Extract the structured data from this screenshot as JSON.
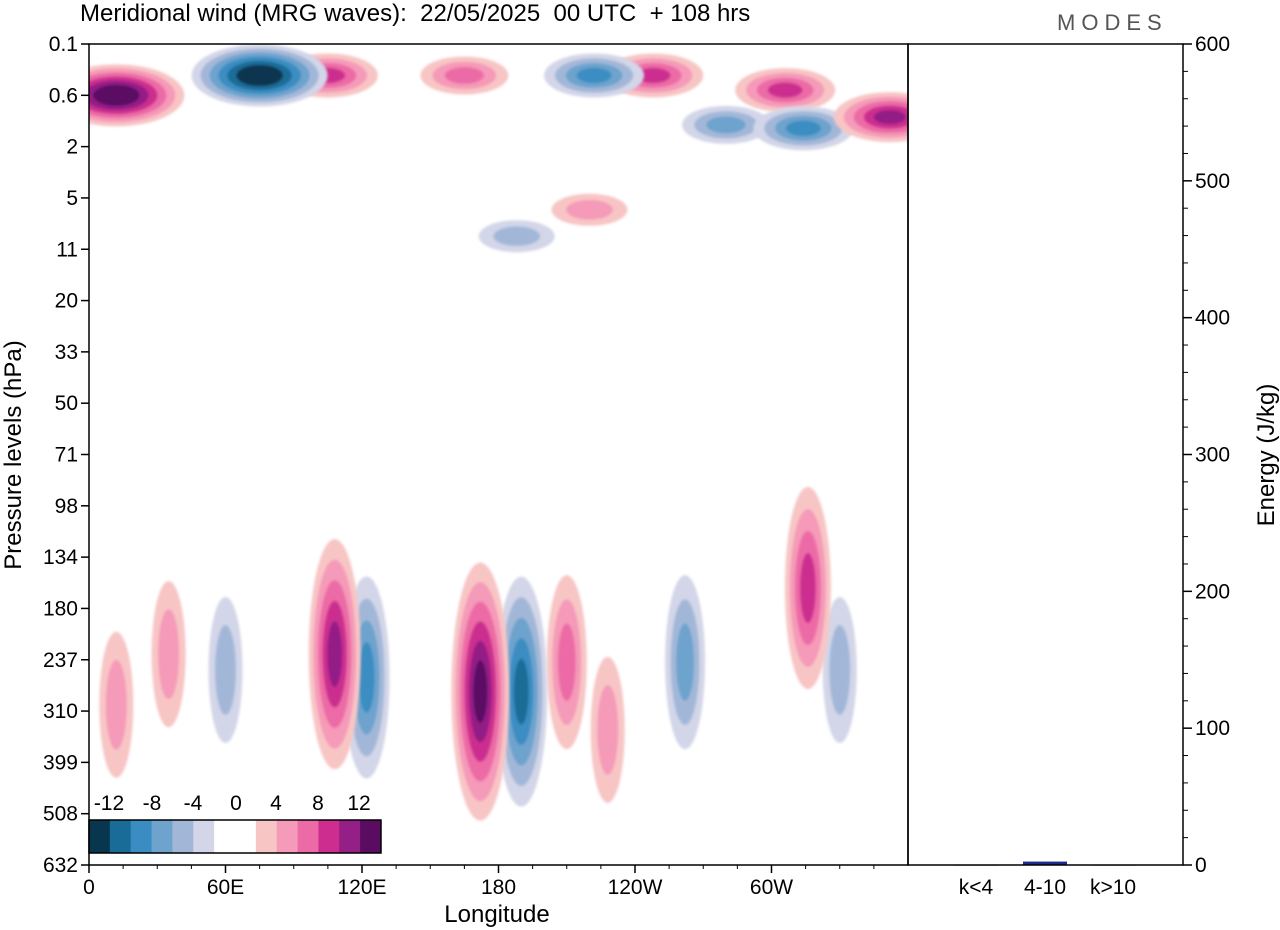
{
  "header": {
    "title": "Meridional wind (MRG waves):  22/05/2025  00 UTC  + 108 hrs",
    "logo": "MODES"
  },
  "colors": {
    "neg_12": "#08364f",
    "neg_10": "#1a6c98",
    "neg_8": "#3a8dc2",
    "neg_6": "#6da3cd",
    "neg_4": "#a2b7d8",
    "neg_2": "#d3d6e8",
    "pos_2": "#f8c5c5",
    "pos_4": "#f59ab8",
    "pos_6": "#ec6aa6",
    "pos_8": "#cc2d8f",
    "pos_10": "#941f86",
    "pos_12": "#5a0c63",
    "energy_bar": "#1c2a8c"
  },
  "chart_data": [
    {
      "type": "heatmap",
      "title": "Meridional wind (MRG waves):  22/05/2025  00 UTC  + 108 hrs",
      "xlabel": "Longitude",
      "ylabel": "Pressure levels (hPa)",
      "x_ticks": [
        "0",
        "60E",
        "120E",
        "180",
        "120W",
        "60W"
      ],
      "y_ticks": [
        "0.1",
        "0.6",
        "2",
        "5",
        "11",
        "20",
        "33",
        "50",
        "71",
        "98",
        "134",
        "180",
        "237",
        "310",
        "399",
        "508",
        "632"
      ],
      "xlim": [
        0,
        360
      ],
      "colorbar": {
        "labels": [
          "-12",
          "-8",
          "-4",
          "0",
          "4",
          "8",
          "12"
        ],
        "levels": [
          -12,
          -10,
          -8,
          -6,
          -4,
          -2,
          0,
          2,
          4,
          6,
          8,
          10,
          12
        ]
      },
      "features": [
        {
          "lon": 12,
          "level": 0.6,
          "value": 14
        },
        {
          "lon": 75,
          "level": 0.3,
          "value": -14
        },
        {
          "lon": 105,
          "level": 0.3,
          "value": 9
        },
        {
          "lon": 165,
          "level": 0.3,
          "value": 7
        },
        {
          "lon": 222,
          "level": 0.3,
          "value": -9
        },
        {
          "lon": 248,
          "level": 0.3,
          "value": 8
        },
        {
          "lon": 306,
          "level": 0.5,
          "value": 9
        },
        {
          "lon": 314,
          "level": 1.3,
          "value": -9
        },
        {
          "lon": 352,
          "level": 1.0,
          "value": 10
        },
        {
          "lon": 280,
          "level": 1.2,
          "value": -7
        },
        {
          "lon": 188,
          "level": 9,
          "value": -5
        },
        {
          "lon": 220,
          "level": 6,
          "value": 5
        },
        {
          "lon": 108,
          "level": 230,
          "value": 11
        },
        {
          "lon": 122,
          "level": 260,
          "value": -8
        },
        {
          "lon": 172,
          "level": 280,
          "value": 13
        },
        {
          "lon": 190,
          "level": 280,
          "value": -10
        },
        {
          "lon": 210,
          "level": 240,
          "value": 6
        },
        {
          "lon": 228,
          "level": 340,
          "value": 5
        },
        {
          "lon": 262,
          "level": 240,
          "value": -7
        },
        {
          "lon": 316,
          "level": 160,
          "value": 9
        },
        {
          "lon": 330,
          "level": 250,
          "value": -5
        },
        {
          "lon": 60,
          "level": 250,
          "value": -5
        },
        {
          "lon": 35,
          "level": 230,
          "value": 4
        },
        {
          "lon": 12,
          "level": 300,
          "value": 4
        }
      ]
    },
    {
      "type": "bar",
      "categories": [
        "k<4",
        "4-10",
        "k>10"
      ],
      "values": [
        0.3,
        2.5,
        0.3
      ],
      "ylabel": "Energy (J/kg)",
      "ylim": [
        0,
        600
      ],
      "y_ticks": [
        "0",
        "100",
        "200",
        "300",
        "400",
        "500",
        "600"
      ]
    }
  ]
}
